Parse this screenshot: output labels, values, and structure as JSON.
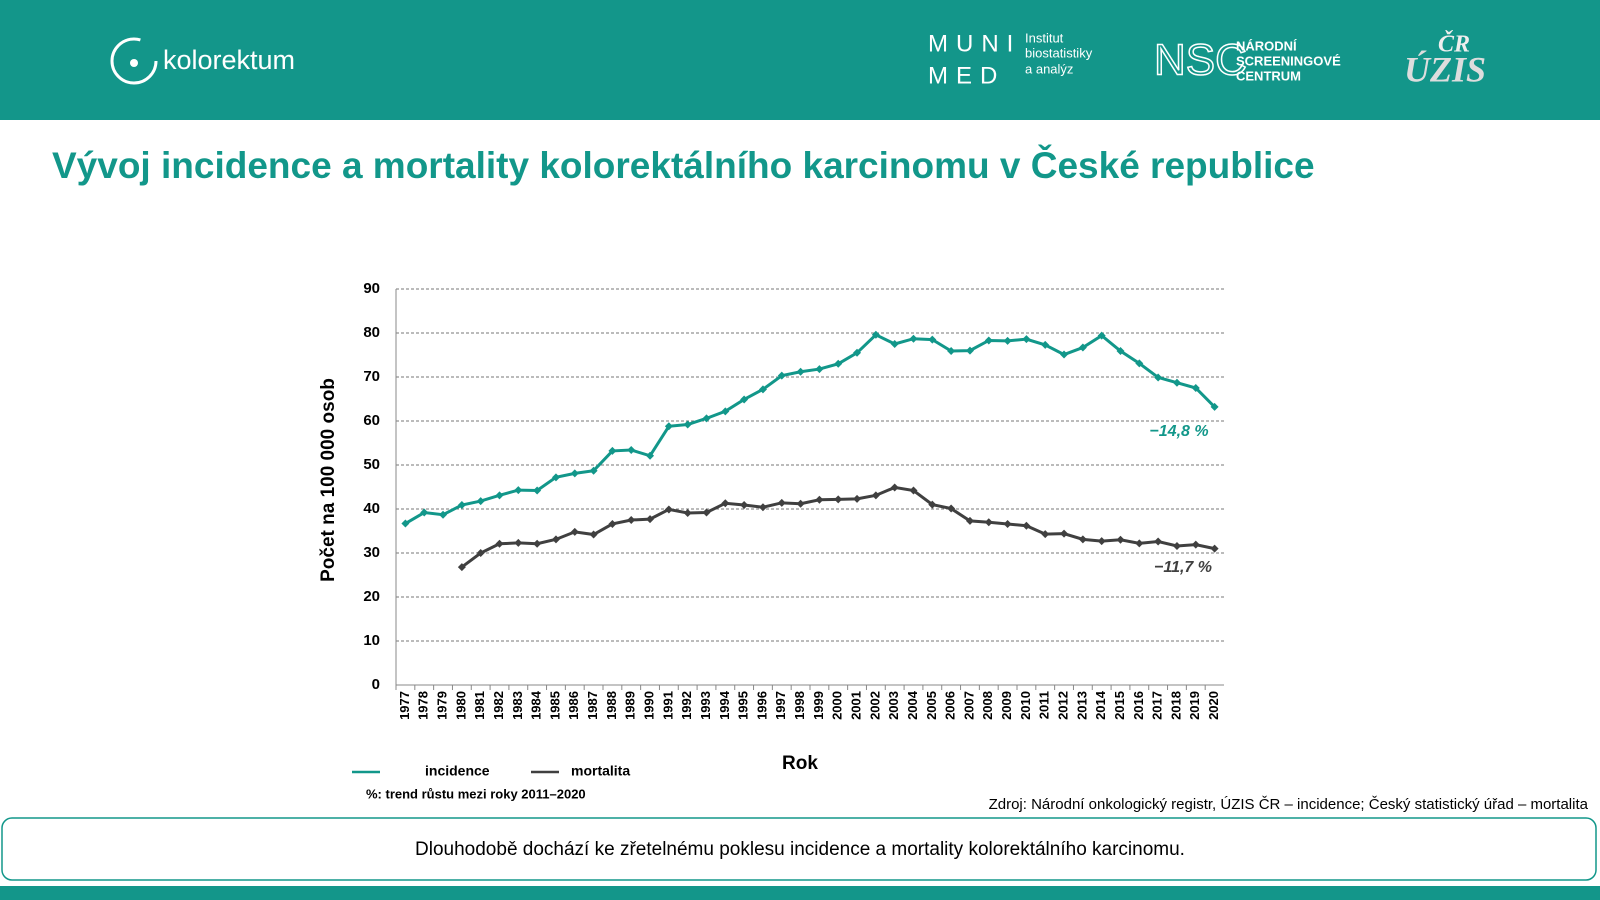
{
  "header": {
    "logo": "kolorektum",
    "muni_top": "MUNI",
    "muni_bottom": "MED",
    "institute_lines": [
      "Institut",
      "biostatistiky",
      "a analýz"
    ],
    "nsc": "NSC",
    "nsc_lines": [
      "NÁRODNÍ",
      "SCREENINGOVÉ",
      "CENTRUM"
    ],
    "uzis_top": "ČR",
    "uzis": "ÚZIS"
  },
  "title": "Vývoj incidence a mortality kolorektálního karcinomu v České republice",
  "chart_data": {
    "type": "line",
    "y_label": "Počet na 100 000 osob",
    "x_label": "Rok",
    "categories": [
      "1977",
      "1978",
      "1979",
      "1980",
      "1981",
      "1982",
      "1983",
      "1984",
      "1985",
      "1986",
      "1987",
      "1988",
      "1989",
      "1990",
      "1991",
      "1992",
      "1993",
      "1994",
      "1995",
      "1996",
      "1997",
      "1998",
      "1999",
      "2000",
      "2001",
      "2002",
      "2003",
      "2004",
      "2005",
      "2006",
      "2007",
      "2008",
      "2009",
      "2010",
      "2011",
      "2012",
      "2013",
      "2014",
      "2015",
      "2016",
      "2017",
      "2018",
      "2019",
      "2020"
    ],
    "series": [
      {
        "name": "incidence",
        "color": "#12978a",
        "values": [
          36.7,
          39.2,
          38.7,
          40.9,
          41.8,
          43.1,
          44.3,
          44.2,
          47.2,
          48.1,
          48.7,
          53.2,
          53.4,
          52.1,
          58.8,
          59.2,
          60.6,
          62.2,
          64.9,
          67.2,
          70.3,
          71.2,
          71.8,
          73.0,
          75.5,
          79.6,
          77.5,
          78.7,
          78.5,
          75.9,
          76.0,
          78.3,
          78.2,
          78.6,
          77.3,
          75.1,
          76.7,
          79.4,
          75.9,
          73.1,
          69.9,
          68.7,
          67.5,
          63.2
        ]
      },
      {
        "name": "mortalita",
        "color": "#404040",
        "values": [
          null,
          null,
          null,
          26.8,
          30.0,
          32.1,
          32.3,
          32.1,
          33.1,
          34.8,
          34.2,
          36.6,
          37.5,
          37.7,
          39.9,
          39.1,
          39.2,
          41.3,
          40.9,
          40.4,
          41.4,
          41.2,
          42.1,
          42.2,
          42.3,
          43.1,
          44.9,
          44.2,
          41.0,
          40.1,
          37.3,
          37.0,
          36.6,
          36.2,
          34.3,
          34.4,
          33.1,
          32.7,
          33.0,
          32.2,
          32.6,
          31.6,
          31.9,
          31.0
        ]
      }
    ],
    "annotations": [
      "−14,8 %",
      "−11,7 %"
    ],
    "legend_note": "%: trend růstu mezi roky 2011–2020",
    "ylim": [
      0,
      90
    ],
    "yticks": [
      0,
      10,
      20,
      30,
      40,
      50,
      60,
      70,
      80,
      90
    ],
    "grid": true
  },
  "source": "Zdroj: Národní onkologický registr, ÚZIS ČR – incidence; Český statistický úřad – mortalita",
  "message": "Dlouhodobě dochází ke zřetelnému poklesu incidence a mortality kolorektálního karcinomu."
}
